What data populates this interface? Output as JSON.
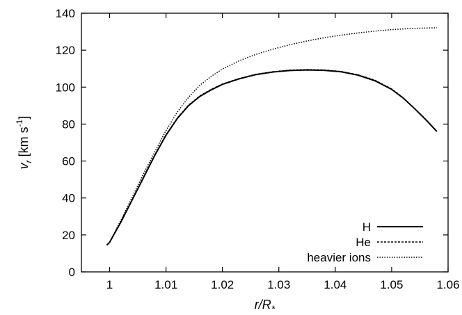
{
  "chart_data": {
    "type": "line",
    "title": "",
    "xlabel": {
      "main": "r/R",
      "sub": "*"
    },
    "ylabel": {
      "v": "v",
      "v_sub": "r",
      "unit_open": " [km s",
      "unit_exp": "-1",
      "unit_close": "]"
    },
    "xlim": [
      0.995,
      1.06
    ],
    "ylim": [
      0,
      140
    ],
    "xticks": [
      1,
      1.01,
      1.02,
      1.03,
      1.04,
      1.05,
      1.06
    ],
    "xtick_labels": [
      "1",
      "1.01",
      "1.02",
      "1.03",
      "1.04",
      "1.05",
      "1.06"
    ],
    "yticks": [
      0,
      20,
      40,
      60,
      80,
      100,
      120,
      140
    ],
    "ytick_labels": [
      "0",
      "20",
      "40",
      "60",
      "80",
      "100",
      "120",
      "140"
    ],
    "grid": false,
    "legend_position": "bottom-right",
    "series": [
      {
        "name": "H",
        "style": "solid",
        "x": [
          0.9995,
          1.0,
          1.002,
          1.004,
          1.006,
          1.008,
          1.01,
          1.012,
          1.014,
          1.016,
          1.018,
          1.02,
          1.023,
          1.026,
          1.029,
          1.032,
          1.035,
          1.038,
          1.041,
          1.044,
          1.047,
          1.05,
          1.052,
          1.054,
          1.056,
          1.058
        ],
        "y": [
          14.5,
          16,
          27,
          39,
          51,
          63,
          74,
          83,
          90,
          95,
          98.5,
          101.5,
          104.5,
          106.8,
          108.2,
          109,
          109.3,
          109.1,
          108.3,
          106.5,
          103.5,
          98.8,
          94.2,
          88.5,
          82.5,
          76
        ]
      },
      {
        "name": "He",
        "style": "dashed",
        "x": [
          0.9995,
          1.0,
          1.002,
          1.004,
          1.006,
          1.008,
          1.01,
          1.012,
          1.014,
          1.016,
          1.018,
          1.02,
          1.023,
          1.026,
          1.029,
          1.032,
          1.035,
          1.038,
          1.041,
          1.044,
          1.047,
          1.05,
          1.052,
          1.054,
          1.056,
          1.058
        ],
        "y": [
          14.5,
          16,
          27,
          39,
          51.3,
          63.3,
          74.3,
          83.3,
          90.3,
          95.3,
          98.8,
          101.7,
          104.7,
          107,
          108.4,
          109.2,
          109.5,
          109.3,
          108.5,
          106.7,
          103.8,
          99,
          94.4,
          88.7,
          82.7,
          76.2
        ]
      },
      {
        "name": "heavier ions",
        "style": "dotted",
        "x": [
          0.9995,
          1.0,
          1.002,
          1.004,
          1.006,
          1.008,
          1.01,
          1.012,
          1.014,
          1.016,
          1.018,
          1.02,
          1.023,
          1.026,
          1.029,
          1.032,
          1.035,
          1.038,
          1.041,
          1.044,
          1.047,
          1.05,
          1.052,
          1.054,
          1.056,
          1.058
        ],
        "y": [
          14.5,
          16,
          28,
          40.5,
          53,
          65,
          76.5,
          86.5,
          94.5,
          101,
          105.8,
          109.8,
          114.3,
          117.8,
          120.6,
          123,
          125,
          126.7,
          128.1,
          129.3,
          130.3,
          131.1,
          131.5,
          131.8,
          132,
          132.1
        ]
      }
    ]
  }
}
